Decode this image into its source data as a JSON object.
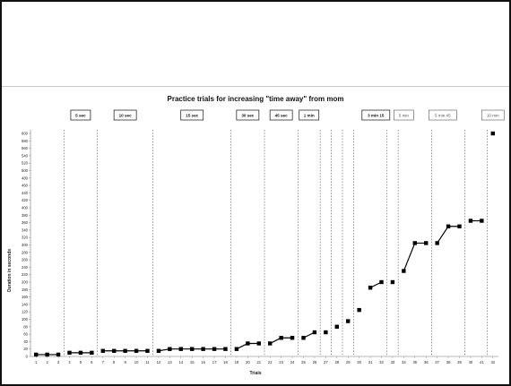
{
  "chart_data": {
    "type": "line",
    "title": "Practice trials for increasing \"time away\" from mom",
    "xlabel": "Trials",
    "ylabel": "Duration in seconds",
    "ylim": [
      0,
      600
    ],
    "yticks": [
      0,
      20,
      40,
      60,
      80,
      100,
      120,
      140,
      160,
      180,
      200,
      220,
      240,
      260,
      280,
      300,
      320,
      340,
      360,
      380,
      400,
      420,
      440,
      460,
      480,
      500,
      520,
      540,
      560,
      580,
      600
    ],
    "x": [
      1,
      2,
      3,
      4,
      5,
      6,
      7,
      8,
      9,
      10,
      11,
      12,
      13,
      14,
      15,
      16,
      17,
      18,
      19,
      20,
      21,
      22,
      23,
      24,
      25,
      26,
      27,
      28,
      29,
      30,
      31,
      32,
      33,
      34,
      35,
      36,
      37,
      38,
      39,
      40,
      41,
      42
    ],
    "y": [
      5,
      5,
      5,
      10,
      10,
      10,
      15,
      15,
      15,
      15,
      15,
      15,
      20,
      20,
      20,
      20,
      20,
      20,
      20,
      35,
      35,
      35,
      50,
      50,
      50,
      65,
      65,
      80,
      95,
      125,
      185,
      200,
      200,
      230,
      305,
      305,
      305,
      350,
      350,
      365,
      365,
      600
    ],
    "series_segments": [
      [
        1,
        3
      ],
      [
        4,
        6
      ],
      [
        7,
        11
      ],
      [
        12,
        18
      ],
      [
        19,
        21
      ],
      [
        22,
        24
      ],
      [
        25,
        26
      ],
      [
        31,
        32
      ],
      [
        34,
        36
      ],
      [
        37,
        39
      ],
      [
        40,
        41
      ]
    ],
    "phase_dividers": [
      3.5,
      6.5,
      11.5,
      18.5,
      21.5,
      24.5,
      26.5,
      27.5,
      28.5,
      29.5,
      32.5,
      33.5,
      36.5,
      39.5,
      41.5
    ],
    "phases": [
      {
        "label": "5 sec",
        "start": 4,
        "end": 6,
        "style": "bold"
      },
      {
        "label": "10 sec",
        "start": 7,
        "end": 11,
        "style": "bold"
      },
      {
        "label": "15 sec",
        "start": 12,
        "end": 18,
        "style": "bold"
      },
      {
        "label": "30 sec",
        "start": 19,
        "end": 21,
        "style": "bold"
      },
      {
        "label": "45 sec",
        "start": 22,
        "end": 24,
        "style": "bold"
      },
      {
        "label": "1 min",
        "start": 25,
        "end": 26,
        "style": "bold"
      },
      {
        "label": "3 min 15",
        "start": 31,
        "end": 32,
        "style": "bold"
      },
      {
        "label": "5 min",
        "start": 34,
        "end": 34,
        "style": "light"
      },
      {
        "label": "5 min 45",
        "start": 37,
        "end": 38,
        "style": "light"
      },
      {
        "label": "10 min",
        "start": 42,
        "end": 42,
        "style": "light"
      }
    ],
    "grid": false,
    "colors": {
      "marker": "#000000",
      "divider": "#555555",
      "axis": "#777777"
    }
  }
}
